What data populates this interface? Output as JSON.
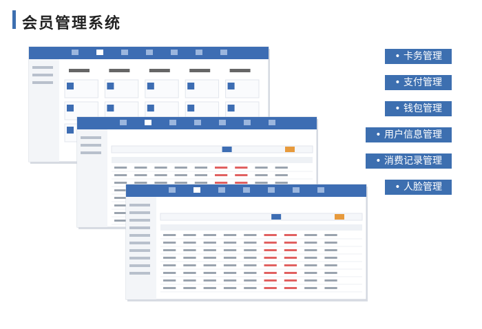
{
  "header": {
    "title": "会员管理系统"
  },
  "features": [
    {
      "label": "• 卡务管理"
    },
    {
      "label": "• 支付管理"
    },
    {
      "label": "• 钱包管理"
    },
    {
      "label": "• 用户信息管理"
    },
    {
      "label": "• 消费记录管理"
    },
    {
      "label": "• 人脸管理"
    }
  ]
}
